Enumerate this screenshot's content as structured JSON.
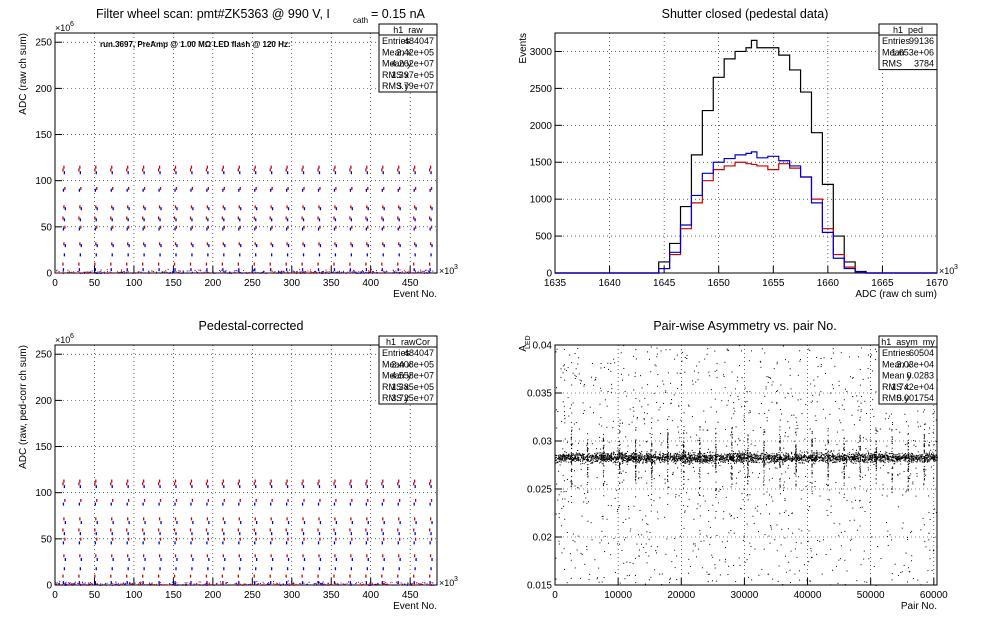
{
  "chart_data": [
    {
      "id": "raw",
      "type": "scatter",
      "title": "Filter wheel scan: pmt#ZK5363 @   990 V, I",
      "title_sub": "cath",
      "title_tail": " = 0.15 nA",
      "annotation": "run.3697, PreAmp @ 1.00 MΩ LED flash @  120 Hz:",
      "xlabel": "Event No.",
      "ylabel": "ADC (raw ch sum)",
      "x_exp_label": "×10",
      "x_exp": "3",
      "y_exp_label": "×10",
      "y_exp": "6",
      "xlim": [
        0,
        484
      ],
      "ylim": [
        0,
        260
      ],
      "xticks": [
        0,
        50,
        100,
        150,
        200,
        250,
        300,
        350,
        400,
        450
      ],
      "yticks": [
        0,
        50,
        100,
        150,
        200,
        250
      ],
      "grid": true,
      "cycle_period": 20.2,
      "levels_red": [
        8,
        30,
        48,
        58,
        70,
        90,
        110,
        113
      ],
      "levels_blue": [
        2,
        18,
        28,
        46,
        56,
        68,
        88,
        107
      ],
      "colors": {
        "red": "#cc0000",
        "blue": "#0000cc"
      },
      "stats": {
        "title": "h1_raw",
        "rows": [
          [
            "Entries",
            "484047"
          ],
          [
            "Mean x",
            "2.42e+05"
          ],
          [
            "Mean y",
            "4.262e+07"
          ],
          [
            "RMS x",
            "1.397e+05"
          ],
          [
            "RMS y",
            "3.79e+07"
          ]
        ]
      }
    },
    {
      "id": "ped",
      "type": "line",
      "title": "Shutter closed (pedestal data)",
      "xlabel": "ADC (raw ch sum)",
      "ylabel": "Events",
      "x_exp_label": "×10",
      "x_exp": "3",
      "xlim": [
        1635,
        1670
      ],
      "ylim": [
        0,
        3250
      ],
      "xticks": [
        1635,
        1640,
        1645,
        1650,
        1655,
        1660,
        1665,
        1670
      ],
      "yticks": [
        0,
        500,
        1000,
        1500,
        2000,
        2500,
        3000
      ],
      "grid": true,
      "x": [
        1643.5,
        1644.5,
        1645.5,
        1646.5,
        1647.5,
        1648.5,
        1649.5,
        1650.5,
        1651.5,
        1652.5,
        1653,
        1653.5,
        1654.5,
        1655.5,
        1656.5,
        1657.5,
        1658.5,
        1659.5,
        1660.5,
        1661.5,
        1662.5
      ],
      "series": [
        {
          "color": "#000000",
          "values": [
            0,
            150,
            400,
            900,
            1600,
            2200,
            2650,
            2900,
            3000,
            3050,
            3150,
            3050,
            3050,
            2950,
            2750,
            2450,
            1900,
            1200,
            500,
            150,
            20
          ]
        },
        {
          "color": "#cc0000",
          "values": [
            0,
            60,
            250,
            600,
            950,
            1250,
            1400,
            1450,
            1500,
            1480,
            1470,
            1450,
            1400,
            1480,
            1420,
            1300,
            1000,
            600,
            250,
            80,
            10
          ]
        },
        {
          "color": "#0000cc",
          "values": [
            0,
            60,
            280,
            650,
            1050,
            1350,
            1500,
            1550,
            1600,
            1620,
            1640,
            1560,
            1580,
            1520,
            1450,
            1300,
            950,
            550,
            200,
            60,
            10
          ]
        }
      ],
      "stats": {
        "title": "h1_ped",
        "rows": [
          [
            "Entries",
            "99136"
          ],
          [
            "Mean",
            "1.653e+06"
          ],
          [
            "RMS",
            "3784"
          ]
        ]
      }
    },
    {
      "id": "cor",
      "type": "scatter",
      "title": "Pedestal-corrected",
      "xlabel": "Event No.",
      "ylabel": "ADC (raw, ped-corr ch sum)",
      "x_exp_label": "×10",
      "x_exp": "3",
      "y_exp_label": "×10",
      "y_exp": "6",
      "xlim": [
        0,
        484
      ],
      "ylim": [
        0,
        260
      ],
      "xticks": [
        0,
        50,
        100,
        150,
        200,
        250,
        300,
        350,
        400,
        450
      ],
      "yticks": [
        0,
        50,
        100,
        150,
        200,
        250
      ],
      "grid": true,
      "cycle_period": 20.2,
      "levels_red": [
        8,
        30,
        48,
        58,
        70,
        90,
        108,
        111
      ],
      "levels_blue": [
        1,
        16,
        26,
        44,
        54,
        66,
        86,
        105
      ],
      "colors": {
        "red": "#cc0000",
        "blue": "#0000cc"
      },
      "stats": {
        "title": "h1_rawCor",
        "rows": [
          [
            "Entries",
            "484047"
          ],
          [
            "Mean x",
            "2.408e+05"
          ],
          [
            "Mean y",
            "4.558e+07"
          ],
          [
            "RMS x",
            "1.385e+05"
          ],
          [
            "RMS y",
            "3.725e+07"
          ]
        ]
      }
    },
    {
      "id": "asym",
      "type": "scatter",
      "title": "Pair-wise Asymmetry vs. pair No.",
      "xlabel": "Pair No.",
      "ylabel": "A",
      "ylabel_sub": "LED",
      "xlim": [
        0,
        60504
      ],
      "ylim": [
        0.015,
        0.04
      ],
      "xticks": [
        0,
        10000,
        20000,
        30000,
        40000,
        50000,
        60000
      ],
      "yticks": [
        0.015,
        0.02,
        0.025,
        0.03,
        0.035,
        0.04
      ],
      "grid": true,
      "band_center": 0.0283,
      "band_width": 0.0009,
      "spike_period": 2540,
      "colors": {
        "points": "#000000"
      },
      "stats": {
        "title": "h1_asym_my",
        "rows": [
          [
            "Entries",
            "60504"
          ],
          [
            "Mean x",
            "3.03e+04"
          ],
          [
            "Mean y",
            "0.0283"
          ],
          [
            "RMS x",
            "1.742e+04"
          ],
          [
            "RMS y",
            "0.001754"
          ]
        ]
      }
    }
  ]
}
